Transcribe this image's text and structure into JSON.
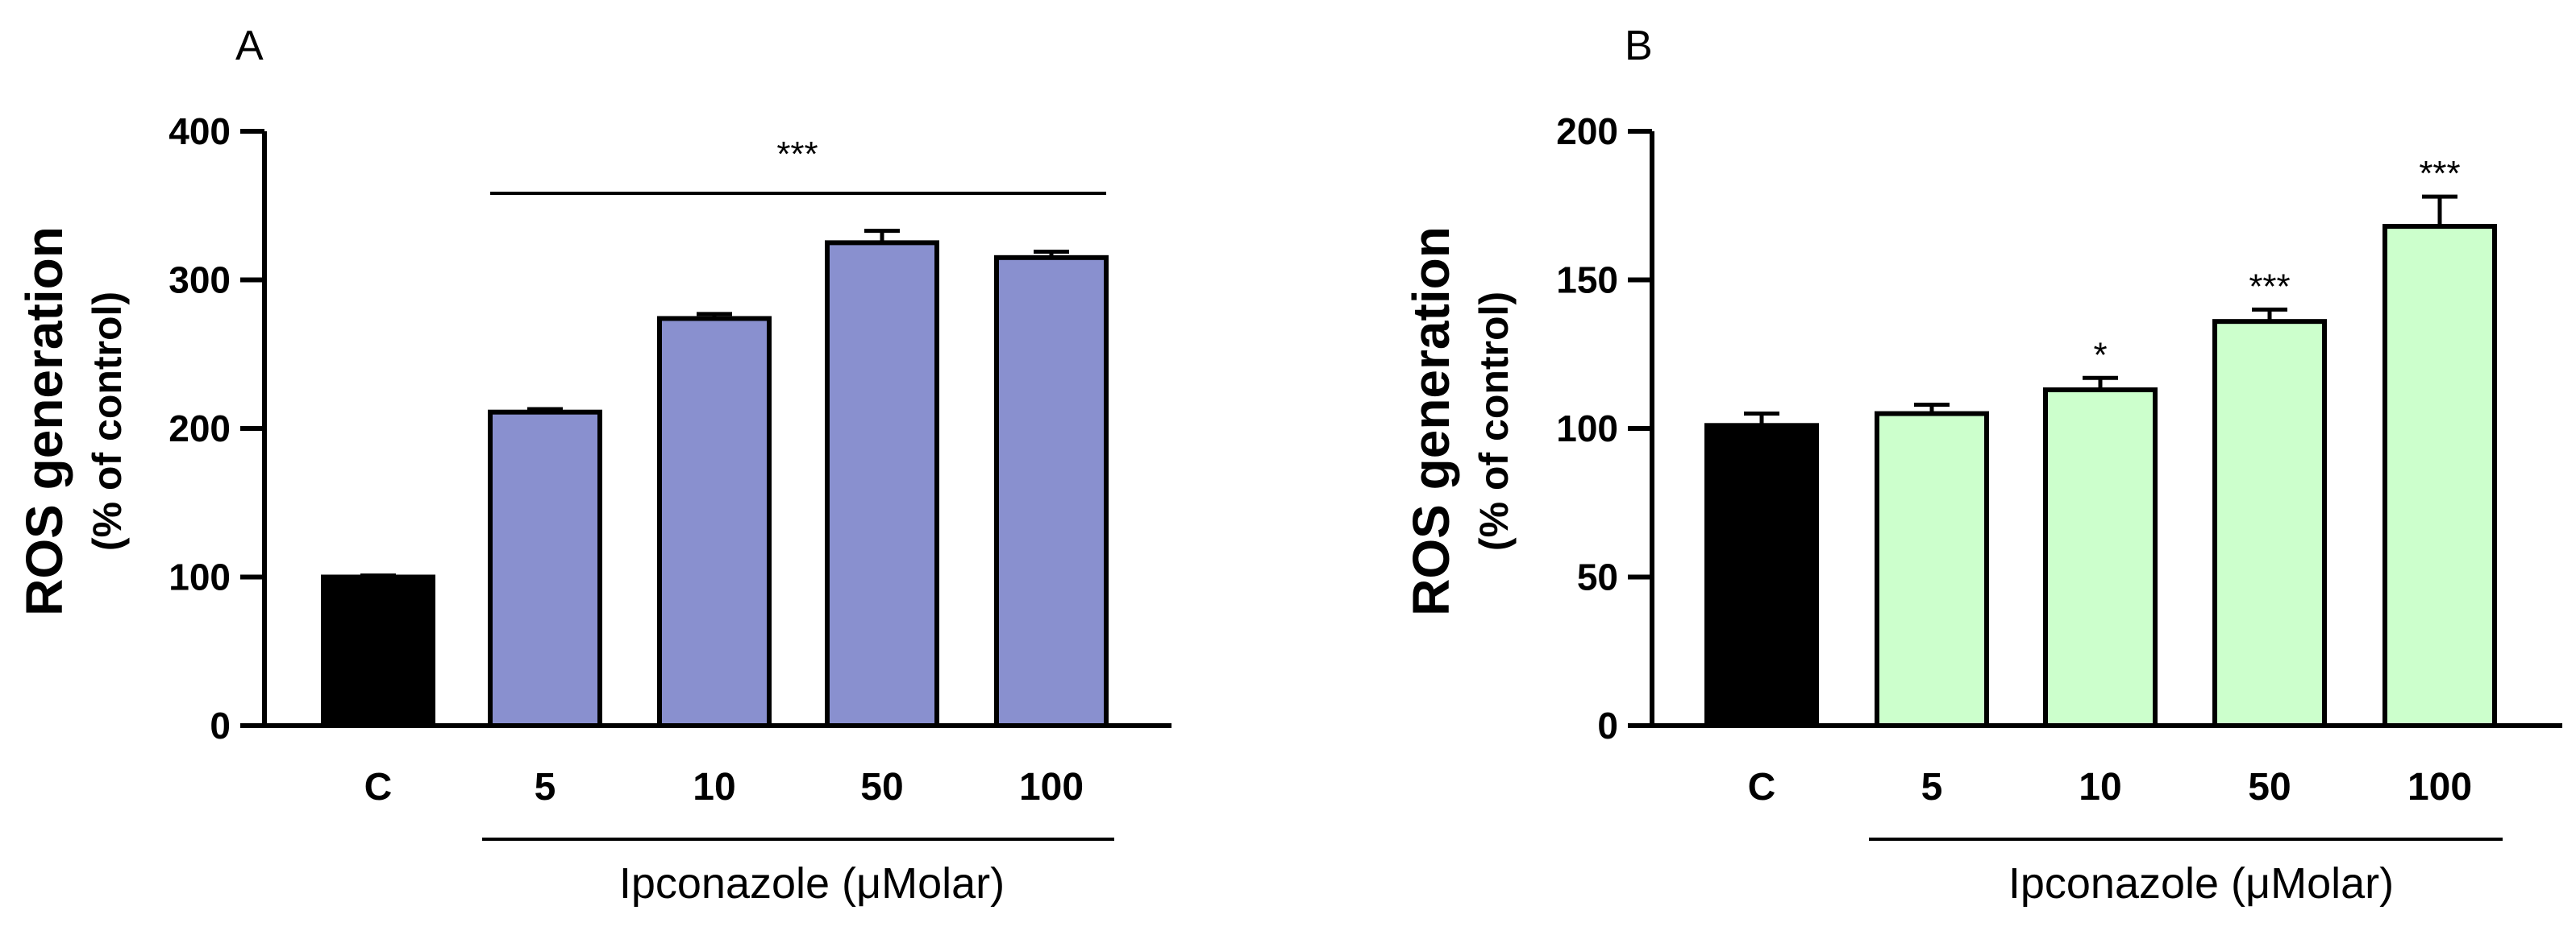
{
  "chart_data": [
    {
      "type": "bar",
      "panel": "A",
      "categories": [
        "C",
        "5",
        "10",
        "50",
        "100"
      ],
      "values": [
        100,
        211,
        274,
        325,
        315
      ],
      "errors": [
        1,
        2,
        3,
        8,
        4
      ],
      "colors": [
        "#000000",
        "#8990cf",
        "#8990cf",
        "#8990cf",
        "#8990cf"
      ],
      "ylabel": "ROS generation",
      "ylabel2": "(% of control)",
      "xlabel": "Ipconazole (μMolar)",
      "ylim": [
        0,
        400
      ],
      "yticks": [
        0,
        100,
        200,
        300,
        400
      ],
      "significance": [
        {
          "from": 1,
          "to": 4,
          "label": "***"
        }
      ],
      "group_bracket": {
        "from": 1,
        "to": 4
      }
    },
    {
      "type": "bar",
      "panel": "B",
      "categories": [
        "C",
        "5",
        "10",
        "50",
        "100"
      ],
      "values": [
        101,
        105,
        113,
        136,
        168
      ],
      "errors": [
        4,
        3,
        4,
        4,
        10
      ],
      "colors": [
        "#000000",
        "#ccffcc",
        "#ccffcc",
        "#ccffcc",
        "#ccffcc"
      ],
      "ylabel": "ROS generation",
      "ylabel2": "(% of control)",
      "xlabel": "Ipconazole (μMolar)",
      "ylim": [
        0,
        200
      ],
      "yticks": [
        0,
        50,
        100,
        150,
        200
      ],
      "significance": [
        {
          "index": 2,
          "label": "*"
        },
        {
          "index": 3,
          "label": "***"
        },
        {
          "index": 4,
          "label": "***"
        }
      ],
      "group_bracket": {
        "from": 1,
        "to": 4
      }
    }
  ]
}
